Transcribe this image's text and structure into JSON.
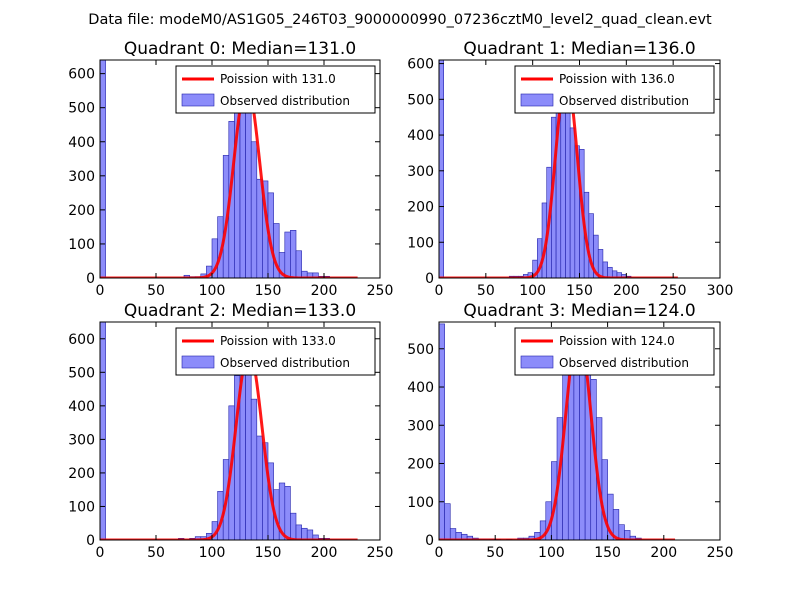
{
  "figure": {
    "suptitle": "Data file: modeM0/AS1G05_246T03_9000000990_07236cztM0_level2_quad_clean.evt"
  },
  "colors": {
    "bar_fill": "#7f7ff9",
    "bar_edge": "#2222aa",
    "line": "#ff0000",
    "legend_edge": "#000000"
  },
  "chart_data": [
    {
      "type": "bar",
      "title": "Quadrant 0: Median=131.0",
      "xlim": [
        0,
        250
      ],
      "ylim": [
        0,
        640
      ],
      "xticks": [
        0,
        50,
        100,
        150,
        200,
        250
      ],
      "yticks": [
        0,
        100,
        200,
        300,
        400,
        500,
        600
      ],
      "bin_width": 5,
      "bins": [
        [
          0,
          640
        ],
        [
          75,
          8
        ],
        [
          80,
          4
        ],
        [
          85,
          4
        ],
        [
          90,
          12
        ],
        [
          95,
          35
        ],
        [
          100,
          115
        ],
        [
          105,
          180
        ],
        [
          110,
          360
        ],
        [
          115,
          460
        ],
        [
          120,
          500
        ],
        [
          125,
          535
        ],
        [
          130,
          560
        ],
        [
          135,
          400
        ],
        [
          140,
          290
        ],
        [
          145,
          285
        ],
        [
          150,
          250
        ],
        [
          155,
          160
        ],
        [
          160,
          75
        ],
        [
          165,
          135
        ],
        [
          170,
          140
        ],
        [
          175,
          80
        ],
        [
          180,
          20
        ],
        [
          185,
          15
        ],
        [
          190,
          15
        ],
        [
          195,
          5
        ],
        [
          200,
          5
        ]
      ],
      "poisson_mean": 131.0,
      "poisson_peak": 568,
      "poisson_xrange": [
        0,
        230
      ],
      "legend": [
        "Poission with 131.0",
        "Observed distribution"
      ]
    },
    {
      "type": "bar",
      "title": "Quadrant 1: Median=136.0",
      "xlim": [
        0,
        300
      ],
      "ylim": [
        0,
        610
      ],
      "xticks": [
        0,
        50,
        100,
        150,
        200,
        250,
        300
      ],
      "yticks": [
        0,
        100,
        200,
        300,
        400,
        500,
        600
      ],
      "bin_width": 5,
      "bins": [
        [
          0,
          610
        ],
        [
          75,
          5
        ],
        [
          80,
          5
        ],
        [
          85,
          5
        ],
        [
          90,
          10
        ],
        [
          95,
          15
        ],
        [
          100,
          50
        ],
        [
          105,
          110
        ],
        [
          110,
          210
        ],
        [
          115,
          310
        ],
        [
          120,
          450
        ],
        [
          125,
          530
        ],
        [
          130,
          575
        ],
        [
          135,
          480
        ],
        [
          140,
          420
        ],
        [
          145,
          370
        ],
        [
          150,
          360
        ],
        [
          155,
          240
        ],
        [
          160,
          180
        ],
        [
          165,
          120
        ],
        [
          170,
          80
        ],
        [
          175,
          45
        ],
        [
          180,
          30
        ],
        [
          185,
          20
        ],
        [
          190,
          15
        ],
        [
          195,
          10
        ],
        [
          200,
          5
        ]
      ],
      "poisson_mean": 136.0,
      "poisson_peak": 563,
      "poisson_xrange": [
        0,
        255
      ],
      "legend": [
        "Poission with 136.0",
        "Observed distribution"
      ]
    },
    {
      "type": "bar",
      "title": "Quadrant 2: Median=133.0",
      "xlim": [
        0,
        250
      ],
      "ylim": [
        0,
        650
      ],
      "xticks": [
        0,
        50,
        100,
        150,
        200,
        250
      ],
      "yticks": [
        0,
        100,
        200,
        300,
        400,
        500,
        600
      ],
      "bin_width": 5,
      "bins": [
        [
          0,
          650
        ],
        [
          70,
          5
        ],
        [
          80,
          5
        ],
        [
          85,
          10
        ],
        [
          90,
          10
        ],
        [
          95,
          20
        ],
        [
          100,
          55
        ],
        [
          105,
          145
        ],
        [
          110,
          240
        ],
        [
          115,
          400
        ],
        [
          120,
          490
        ],
        [
          125,
          520
        ],
        [
          130,
          595
        ],
        [
          135,
          420
        ],
        [
          140,
          310
        ],
        [
          145,
          290
        ],
        [
          150,
          230
        ],
        [
          155,
          150
        ],
        [
          160,
          170
        ],
        [
          165,
          160
        ],
        [
          170,
          80
        ],
        [
          175,
          45
        ],
        [
          180,
          35
        ],
        [
          185,
          30
        ],
        [
          190,
          15
        ],
        [
          195,
          5
        ],
        [
          200,
          5
        ]
      ],
      "poisson_mean": 133.0,
      "poisson_peak": 563,
      "poisson_xrange": [
        0,
        230
      ],
      "legend": [
        "Poission with 133.0",
        "Observed distribution"
      ]
    },
    {
      "type": "bar",
      "title": "Quadrant 3: Median=124.0",
      "xlim": [
        0,
        250
      ],
      "ylim": [
        0,
        570
      ],
      "xticks": [
        0,
        50,
        100,
        150,
        200,
        250
      ],
      "yticks": [
        0,
        100,
        200,
        300,
        400,
        500
      ],
      "bin_width": 5,
      "bins": [
        [
          0,
          565
        ],
        [
          5,
          95
        ],
        [
          10,
          30
        ],
        [
          15,
          20
        ],
        [
          20,
          15
        ],
        [
          25,
          10
        ],
        [
          30,
          5
        ],
        [
          35,
          3
        ],
        [
          40,
          3
        ],
        [
          45,
          3
        ],
        [
          50,
          2
        ],
        [
          60,
          2
        ],
        [
          70,
          5
        ],
        [
          75,
          5
        ],
        [
          80,
          10
        ],
        [
          85,
          20
        ],
        [
          90,
          50
        ],
        [
          95,
          100
        ],
        [
          100,
          205
        ],
        [
          105,
          320
        ],
        [
          110,
          480
        ],
        [
          115,
          550
        ],
        [
          120,
          520
        ],
        [
          125,
          480
        ],
        [
          130,
          480
        ],
        [
          135,
          420
        ],
        [
          140,
          320
        ],
        [
          145,
          210
        ],
        [
          150,
          120
        ],
        [
          155,
          80
        ],
        [
          160,
          40
        ],
        [
          165,
          25
        ],
        [
          170,
          10
        ],
        [
          175,
          5
        ]
      ],
      "poisson_mean": 124.0,
      "poisson_peak": 547,
      "poisson_xrange": [
        0,
        210
      ],
      "legend": [
        "Poission with 124.0",
        "Observed distribution"
      ]
    }
  ]
}
